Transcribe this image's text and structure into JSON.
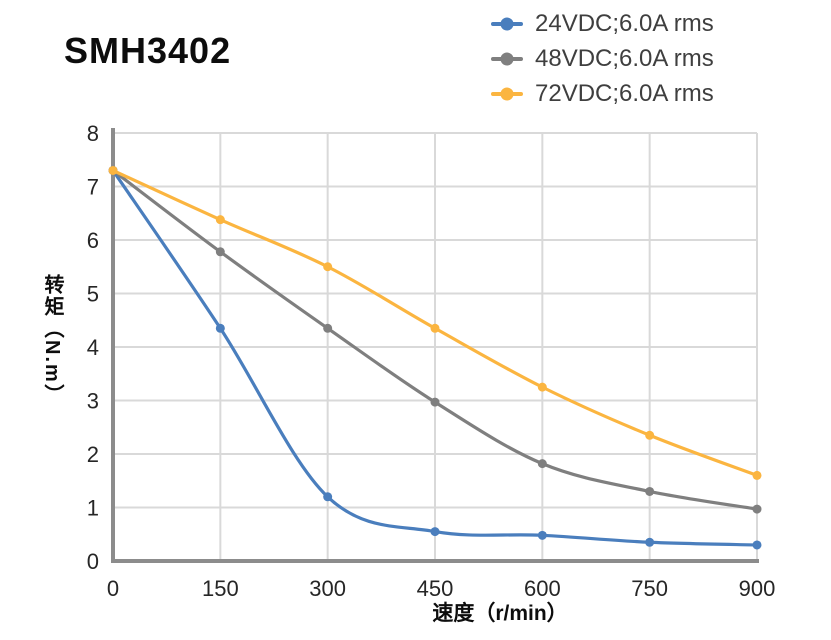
{
  "title": "SMH3402",
  "axes": {
    "x_label": "速度（r/min）",
    "y_label": "转矩（N.m）"
  },
  "colors": {
    "grid": "#d9d9d9",
    "axis": "#8c8c8c",
    "tick_text": "#262626",
    "legend_text": "#3f3f3f",
    "title_text": "#0d0d0d"
  },
  "chart_data": {
    "type": "line",
    "title": "SMH3402",
    "xlabel": "速度（r/min）",
    "ylabel": "转矩（N.m）",
    "x": [
      0,
      150,
      300,
      450,
      600,
      750,
      900
    ],
    "x_ticks": [
      0,
      150,
      300,
      450,
      600,
      750,
      900
    ],
    "y_ticks": [
      0,
      1,
      2,
      3,
      4,
      5,
      6,
      7,
      8
    ],
    "xlim": [
      0,
      900
    ],
    "ylim": [
      0,
      8
    ],
    "grid": true,
    "legend_position": "top-right",
    "marker": "circle",
    "series": [
      {
        "name": "24VDC;6.0A rms",
        "color": "#4a7ebd",
        "values": [
          7.3,
          4.35,
          1.2,
          0.55,
          0.48,
          0.35,
          0.3
        ]
      },
      {
        "name": "48VDC;6.0A rms",
        "color": "#7f7f7f",
        "values": [
          7.3,
          5.78,
          4.35,
          2.97,
          1.82,
          1.3,
          0.97
        ]
      },
      {
        "name": "72VDC;6.0A rms",
        "color": "#fbb540",
        "values": [
          7.3,
          6.38,
          5.5,
          4.35,
          3.25,
          2.35,
          1.6
        ]
      }
    ]
  }
}
